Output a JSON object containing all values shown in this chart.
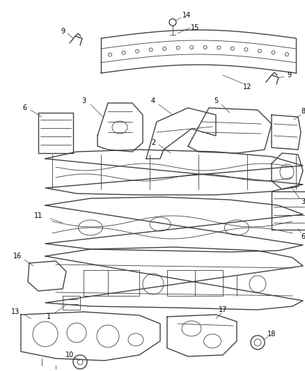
{
  "bg_color": "#ffffff",
  "line_color": "#404040",
  "label_color": "#000000",
  "fig_width": 4.38,
  "fig_height": 5.33,
  "dpi": 100
}
